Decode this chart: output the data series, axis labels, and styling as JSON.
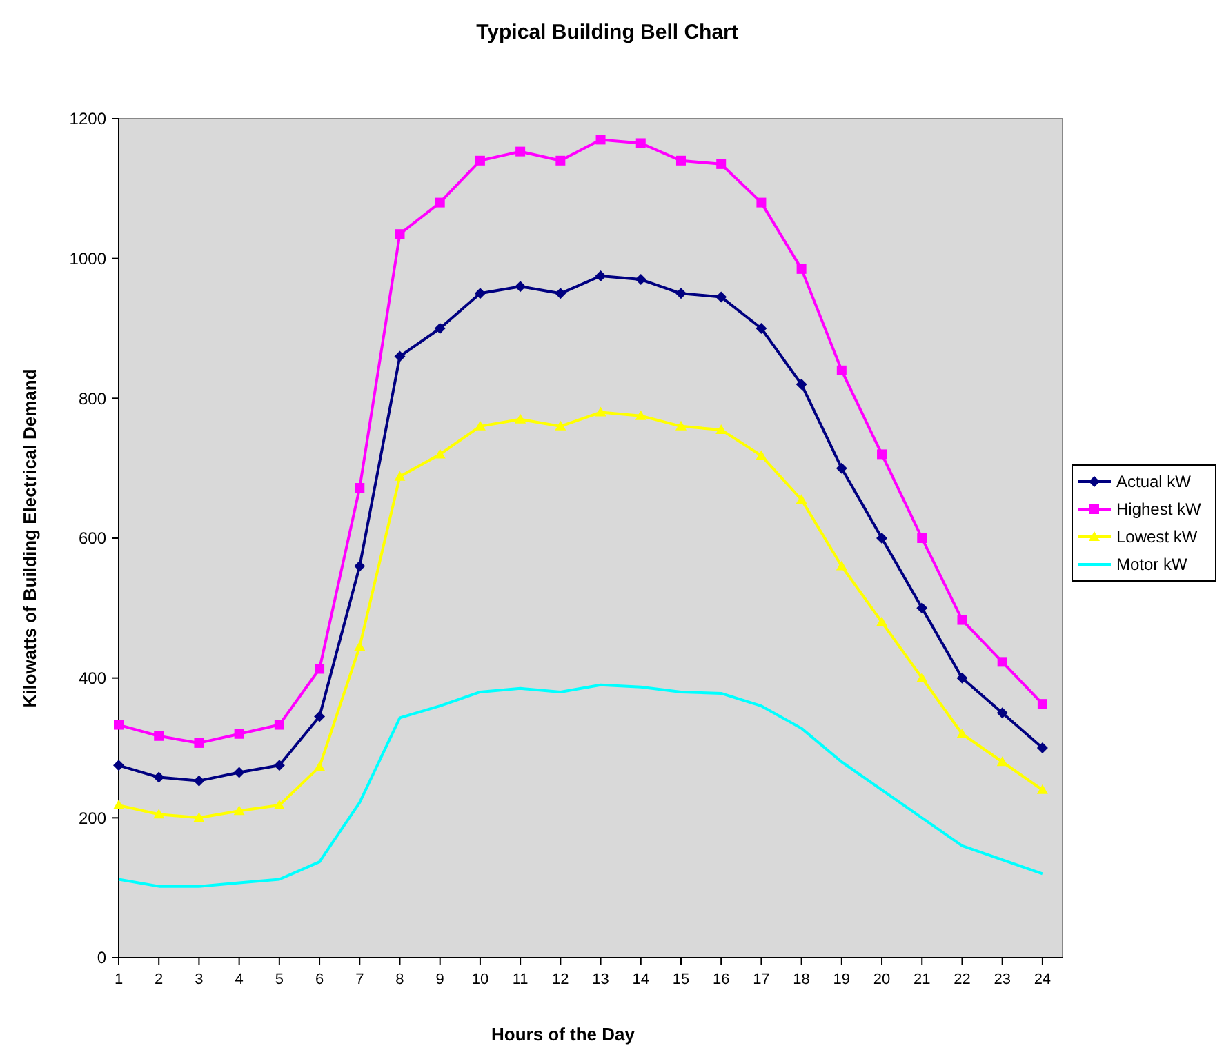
{
  "chart_data": {
    "type": "line",
    "title": "Typical Building Bell Chart",
    "xlabel": "Hours of the Day",
    "ylabel": "Kilowatts of Building Electrical Demand",
    "x": [
      1,
      2,
      3,
      4,
      5,
      6,
      7,
      8,
      9,
      10,
      11,
      12,
      13,
      14,
      15,
      16,
      17,
      18,
      19,
      20,
      21,
      22,
      23,
      24
    ],
    "xlim": [
      1,
      24.5
    ],
    "xticks": [
      1,
      2,
      3,
      4,
      5,
      6,
      7,
      8,
      9,
      10,
      11,
      12,
      13,
      14,
      15,
      16,
      17,
      18,
      19,
      20,
      21,
      22,
      23,
      24
    ],
    "ylim": [
      0,
      1200
    ],
    "yticks": [
      0,
      200,
      400,
      600,
      800,
      1000,
      1200
    ],
    "grid": false,
    "legend": "right",
    "series": [
      {
        "name": "Actual kW",
        "color": "#000080",
        "marker": "diamond",
        "values": [
          275,
          258,
          253,
          265,
          275,
          345,
          560,
          860,
          900,
          950,
          960,
          950,
          975,
          970,
          950,
          945,
          900,
          820,
          700,
          600,
          500,
          400,
          350,
          300
        ]
      },
      {
        "name": "Highest kW",
        "color": "#ff00ff",
        "marker": "square",
        "values": [
          333,
          317,
          307,
          320,
          333,
          413,
          672,
          1035,
          1080,
          1140,
          1153,
          1140,
          1170,
          1165,
          1140,
          1135,
          1080,
          985,
          840,
          720,
          600,
          483,
          423,
          363
        ]
      },
      {
        "name": "Lowest kW",
        "color": "#ffff00",
        "marker": "triangle",
        "values": [
          218,
          205,
          200,
          210,
          218,
          273,
          445,
          688,
          720,
          760,
          770,
          760,
          780,
          775,
          760,
          755,
          718,
          655,
          560,
          480,
          400,
          320,
          280,
          240
        ]
      },
      {
        "name": "Motor kW",
        "color": "#00ffff",
        "marker": "none",
        "values": [
          112,
          102,
          102,
          107,
          112,
          137,
          222,
          343,
          360,
          380,
          385,
          380,
          390,
          387,
          380,
          378,
          360,
          328,
          280,
          240,
          200,
          160,
          140,
          120
        ]
      }
    ]
  }
}
